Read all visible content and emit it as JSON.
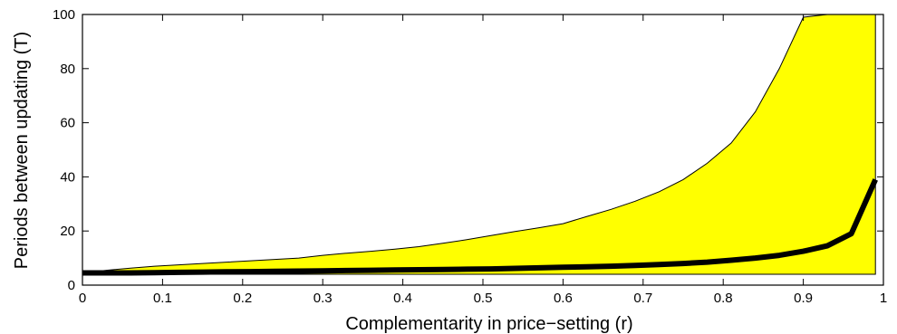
{
  "chart_data": {
    "type": "area",
    "title": "",
    "xlabel": "Complementarity in price−setting (r)",
    "ylabel": "Periods between updating (T)",
    "xlim": [
      0,
      1
    ],
    "ylim": [
      0,
      100
    ],
    "xticks": [
      0,
      0.1,
      0.2,
      0.3,
      0.4,
      0.5,
      0.6,
      0.7,
      0.8,
      0.9,
      1
    ],
    "xtick_labels": [
      "0",
      "0.1",
      "0.2",
      "0.3",
      "0.4",
      "0.5",
      "0.6",
      "0.7",
      "0.8",
      "0.9",
      "1"
    ],
    "yticks": [
      0,
      20,
      40,
      60,
      80,
      100
    ],
    "ytick_labels": [
      "0",
      "20",
      "40",
      "60",
      "80",
      "100"
    ],
    "grid": false,
    "colors": {
      "band_fill": "#ffff00",
      "band_edge": "#000000",
      "line": "#000000",
      "axes": "#000000",
      "background": "#ffffff"
    },
    "band": {
      "x": [
        0,
        0.03,
        0.06,
        0.09,
        0.12,
        0.15,
        0.18,
        0.21,
        0.24,
        0.27,
        0.3,
        0.33,
        0.36,
        0.39,
        0.42,
        0.45,
        0.48,
        0.51,
        0.54,
        0.57,
        0.6,
        0.63,
        0.66,
        0.69,
        0.72,
        0.75,
        0.78,
        0.81,
        0.84,
        0.87,
        0.9,
        0.93,
        0.96,
        0.99
      ],
      "upper": [
        4.5,
        5.5,
        6.3,
        7.0,
        7.5,
        8.0,
        8.5,
        9.0,
        9.5,
        10.0,
        11.0,
        11.8,
        12.5,
        13.3,
        14.2,
        15.5,
        16.8,
        18.3,
        19.8,
        21.2,
        22.7,
        25.4,
        28.0,
        31.0,
        34.5,
        39.0,
        45.0,
        52.5,
        64.0,
        80.0,
        99.0,
        100,
        100,
        100
      ],
      "lower": [
        4,
        4,
        4,
        4,
        4,
        4,
        4,
        4,
        4,
        4,
        4,
        4,
        4,
        4,
        4,
        4,
        4,
        4,
        4,
        4,
        4,
        4,
        4,
        4,
        4,
        4,
        4,
        4,
        4,
        4,
        4,
        4,
        4,
        4
      ]
    },
    "series": [
      {
        "x": [
          0,
          0.03,
          0.06,
          0.09,
          0.12,
          0.15,
          0.18,
          0.21,
          0.24,
          0.27,
          0.3,
          0.33,
          0.36,
          0.39,
          0.42,
          0.45,
          0.48,
          0.51,
          0.54,
          0.57,
          0.6,
          0.63,
          0.66,
          0.69,
          0.72,
          0.75,
          0.78,
          0.81,
          0.84,
          0.87,
          0.9,
          0.93,
          0.96,
          0.99
        ],
        "values": [
          4.5,
          4.5,
          4.5,
          4.6,
          4.7,
          4.8,
          4.9,
          5.0,
          5.1,
          5.2,
          5.3,
          5.4,
          5.5,
          5.6,
          5.7,
          5.8,
          5.9,
          6.0,
          6.2,
          6.4,
          6.6,
          6.8,
          7.0,
          7.3,
          7.6,
          8.0,
          8.5,
          9.2,
          10.0,
          11.0,
          12.5,
          14.5,
          19.0,
          39.0
        ]
      }
    ]
  }
}
